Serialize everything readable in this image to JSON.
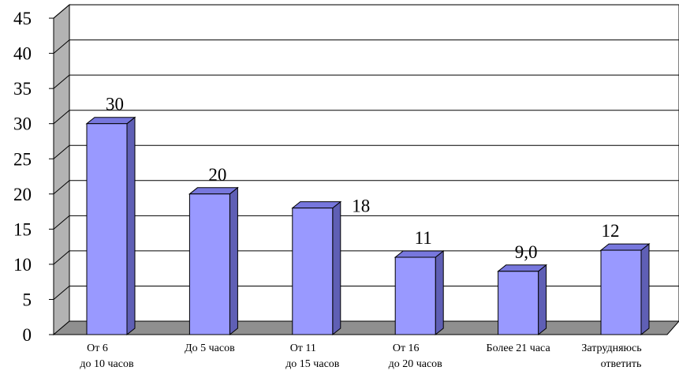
{
  "chart_data": {
    "type": "bar",
    "title": "",
    "xlabel": "",
    "ylabel": "",
    "ylim": [
      0,
      45
    ],
    "ytick_step": 5,
    "yticks": [
      "0",
      "5",
      "10",
      "15",
      "20",
      "25",
      "30",
      "35",
      "40",
      "45"
    ],
    "grid": true,
    "legend": "none",
    "style": "3d",
    "categories": [
      [
        "От 6",
        "до 10 часов"
      ],
      [
        "До 5 часов"
      ],
      [
        "От 11",
        "до 15 часов"
      ],
      [
        "От 16",
        "до 20 часов"
      ],
      [
        "Более 21 часа"
      ],
      [
        "Затрудняюсь",
        "ответить"
      ]
    ],
    "values": [
      30,
      20,
      18,
      11,
      9,
      12
    ],
    "value_labels": [
      "30",
      "20",
      "18",
      "11",
      "9,0",
      "12"
    ],
    "colors": {
      "bar_front": "#9999ff",
      "bar_top": "#7777dd",
      "bar_side": "#5f5fb5",
      "back_wall": "#ffffff",
      "side_wall": "#b3b3b3",
      "floor": "#8f8f8f",
      "gridline": "#000000"
    }
  }
}
